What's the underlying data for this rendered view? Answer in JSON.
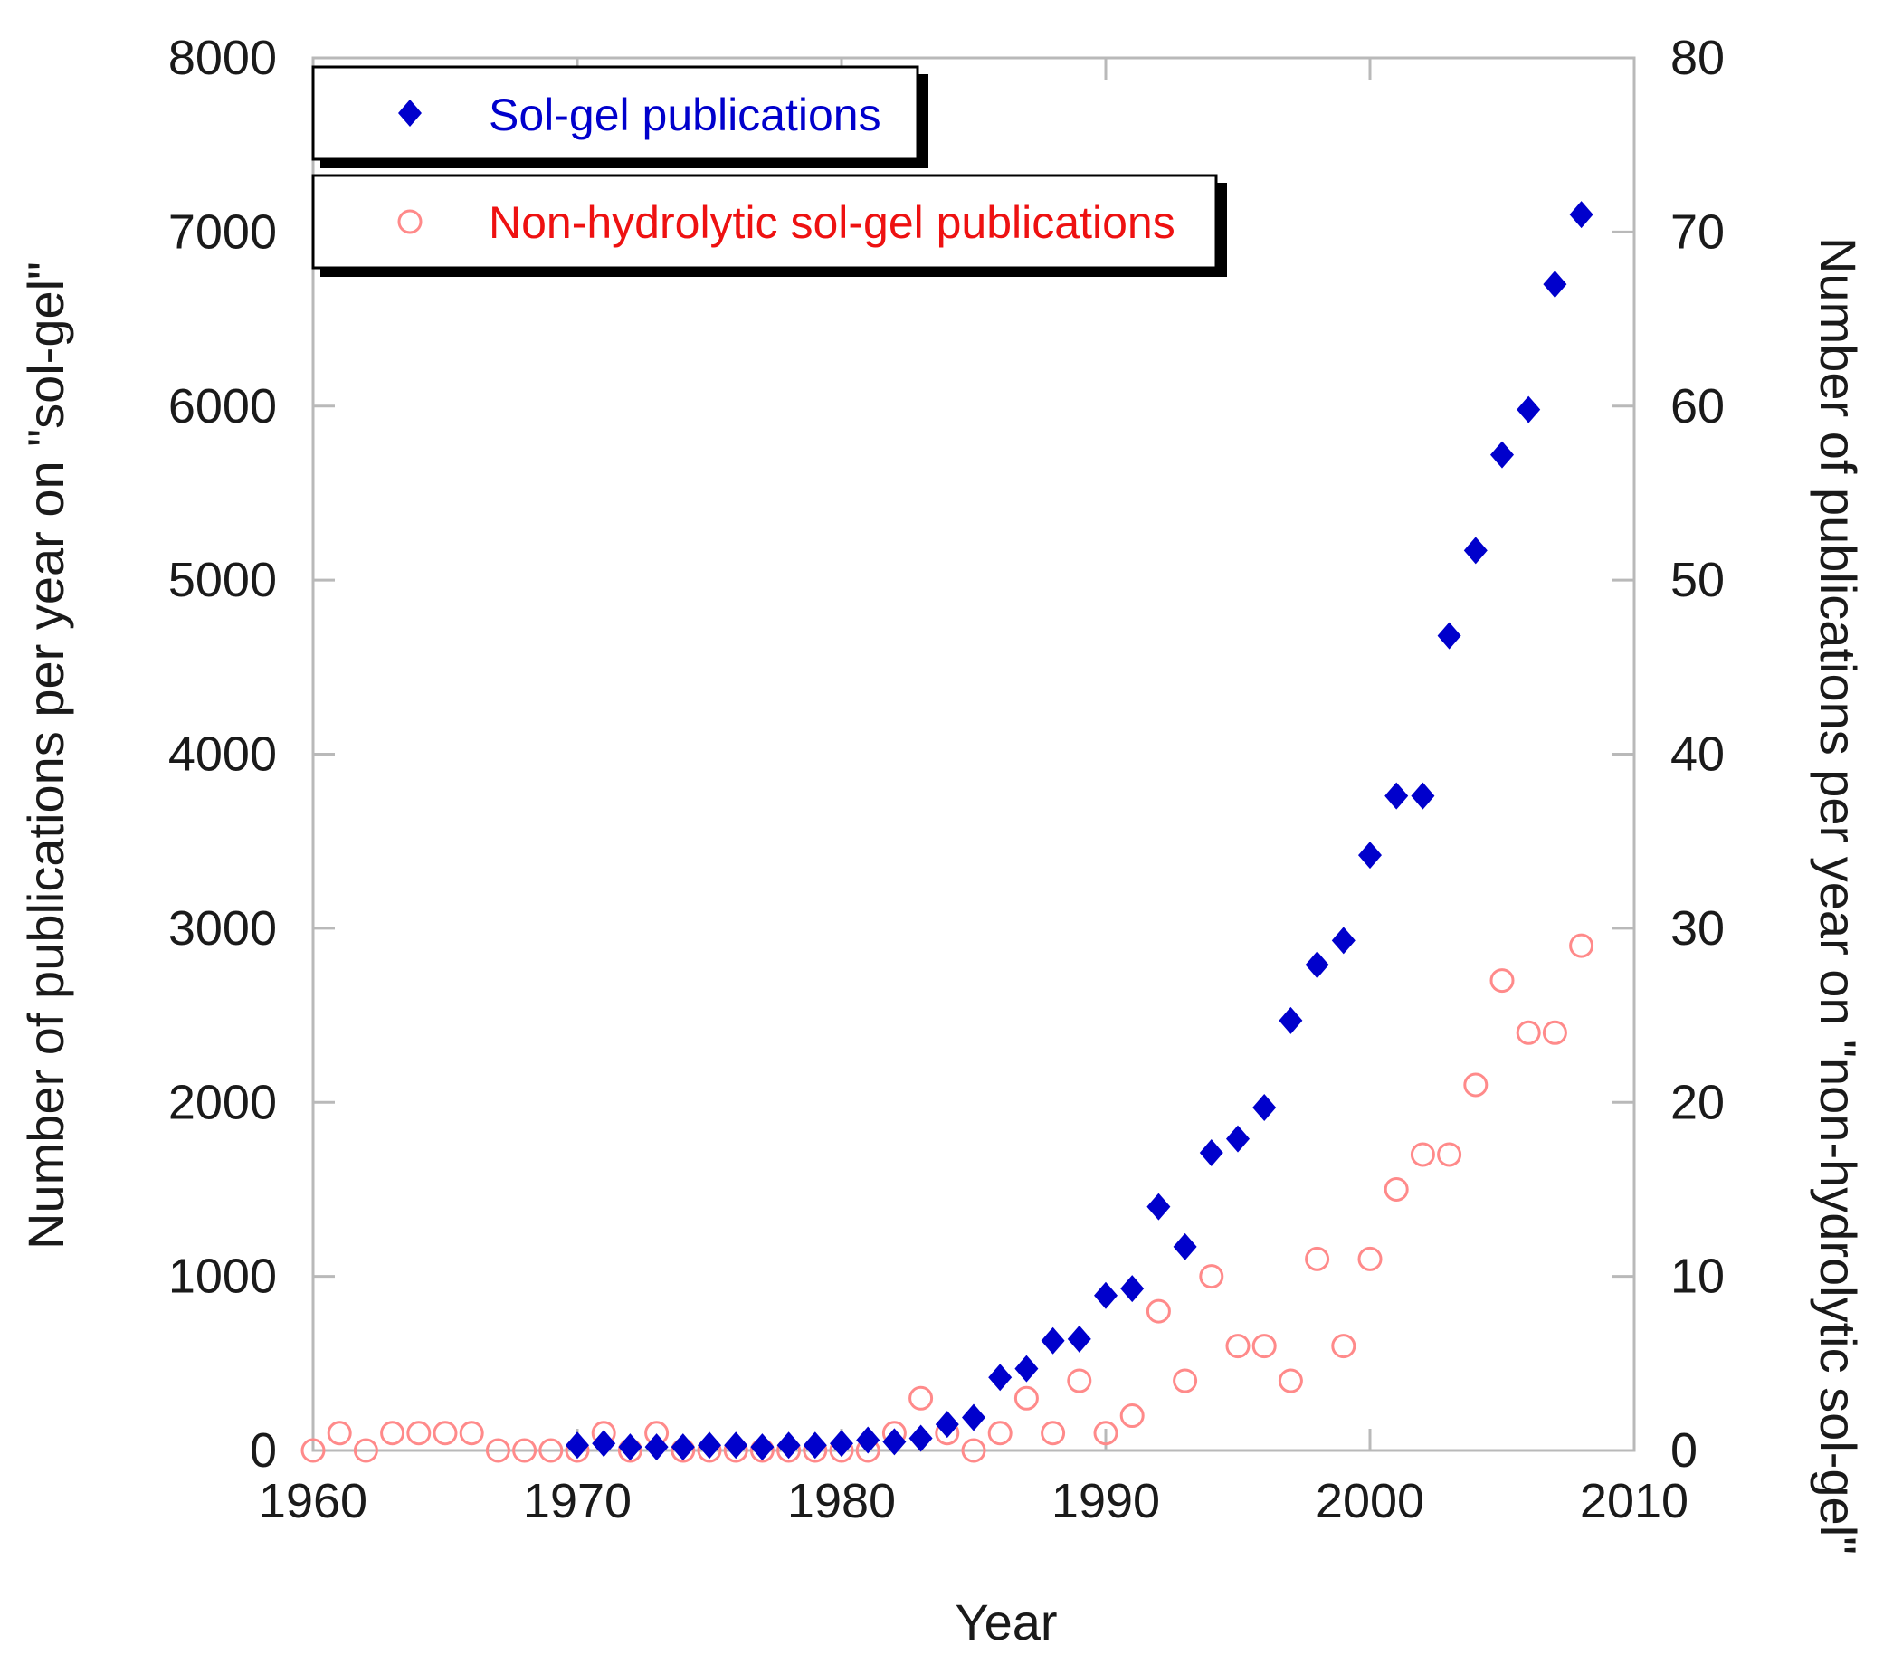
{
  "chart_data": {
    "type": "scatter",
    "xlabel": "Year",
    "ylabel_left": "Number of publications per year on \"sol-gel\"",
    "ylabel_right": "Number of publications per year on \"non-hydrolytic sol-gel\"",
    "xlim": [
      1960,
      2010
    ],
    "ylim_left": [
      0,
      8000
    ],
    "ylim_right": [
      0,
      80
    ],
    "x_ticks": [
      "1960",
      "1970",
      "1980",
      "1990",
      "2000",
      "2010"
    ],
    "y_ticks_left": [
      "0",
      "1000",
      "2000",
      "3000",
      "4000",
      "5000",
      "6000",
      "7000",
      "8000"
    ],
    "y_ticks_right": [
      "0",
      "10",
      "20",
      "30",
      "40",
      "50",
      "60",
      "70",
      "80"
    ],
    "grid": false,
    "legend_position": "top-left",
    "series": [
      {
        "name": "Sol-gel publications",
        "axis": "left",
        "marker": "filled-diamond",
        "color": "#0000cc",
        "points": [
          [
            1970,
            30
          ],
          [
            1971,
            40
          ],
          [
            1972,
            20
          ],
          [
            1973,
            20
          ],
          [
            1974,
            20
          ],
          [
            1975,
            30
          ],
          [
            1976,
            30
          ],
          [
            1977,
            20
          ],
          [
            1978,
            30
          ],
          [
            1979,
            30
          ],
          [
            1980,
            40
          ],
          [
            1981,
            60
          ],
          [
            1982,
            50
          ],
          [
            1983,
            70
          ],
          [
            1984,
            150
          ],
          [
            1985,
            190
          ],
          [
            1986,
            420
          ],
          [
            1987,
            470
          ],
          [
            1988,
            630
          ],
          [
            1989,
            640
          ],
          [
            1990,
            890
          ],
          [
            1991,
            930
          ],
          [
            1992,
            1400
          ],
          [
            1993,
            1170
          ],
          [
            1994,
            1710
          ],
          [
            1995,
            1790
          ],
          [
            1996,
            1970
          ],
          [
            1997,
            2470
          ],
          [
            1998,
            2790
          ],
          [
            1999,
            2930
          ],
          [
            2000,
            3420
          ],
          [
            2001,
            3760
          ],
          [
            2002,
            3760
          ],
          [
            2003,
            4680
          ],
          [
            2004,
            5170
          ],
          [
            2005,
            5720
          ],
          [
            2006,
            5980
          ],
          [
            2007,
            6700
          ],
          [
            2008,
            7100
          ]
        ]
      },
      {
        "name": "Non-hydrolytic sol-gel publications",
        "axis": "right",
        "marker": "open-circle",
        "color": "#ff8a8a",
        "legend_text_color": "#ee1111",
        "points": [
          [
            1960,
            0
          ],
          [
            1961,
            1
          ],
          [
            1962,
            0
          ],
          [
            1963,
            1
          ],
          [
            1964,
            1
          ],
          [
            1965,
            1
          ],
          [
            1966,
            1
          ],
          [
            1967,
            0
          ],
          [
            1968,
            0
          ],
          [
            1969,
            0
          ],
          [
            1970,
            0
          ],
          [
            1971,
            1
          ],
          [
            1972,
            0
          ],
          [
            1973,
            1
          ],
          [
            1974,
            0
          ],
          [
            1975,
            0
          ],
          [
            1976,
            0
          ],
          [
            1977,
            0
          ],
          [
            1978,
            0
          ],
          [
            1979,
            0
          ],
          [
            1980,
            0
          ],
          [
            1981,
            0
          ],
          [
            1982,
            1
          ],
          [
            1983,
            3
          ],
          [
            1984,
            1
          ],
          [
            1985,
            0
          ],
          [
            1986,
            1
          ],
          [
            1987,
            3
          ],
          [
            1988,
            1
          ],
          [
            1989,
            4
          ],
          [
            1990,
            1
          ],
          [
            1991,
            2
          ],
          [
            1992,
            8
          ],
          [
            1993,
            4
          ],
          [
            1994,
            10
          ],
          [
            1995,
            6
          ],
          [
            1996,
            6
          ],
          [
            1997,
            4
          ],
          [
            1998,
            11
          ],
          [
            1999,
            6
          ],
          [
            2000,
            11
          ],
          [
            2001,
            15
          ],
          [
            2002,
            17
          ],
          [
            2003,
            17
          ],
          [
            2004,
            21
          ],
          [
            2005,
            27
          ],
          [
            2006,
            24
          ],
          [
            2007,
            24
          ],
          [
            2008,
            29
          ]
        ]
      }
    ]
  }
}
